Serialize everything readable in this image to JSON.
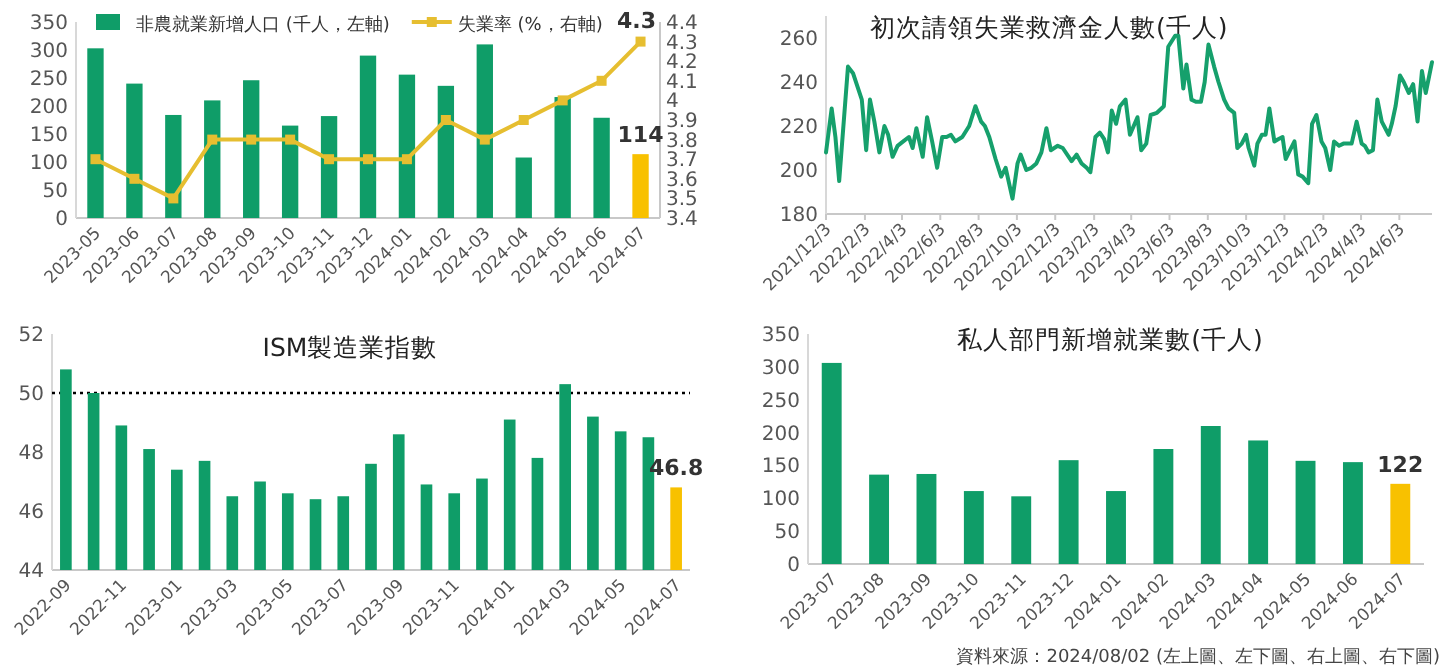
{
  "chart_data": [
    {
      "type": "bar",
      "categories": [
        "2023-05",
        "2023-06",
        "2023-07",
        "2023-08",
        "2023-09",
        "2023-10",
        "2023-11",
        "2023-12",
        "2024-01",
        "2024-02",
        "2024-03",
        "2024-04",
        "2024-05",
        "2024-06",
        "2024-07"
      ],
      "series": [
        {
          "name": "非農就業新增人口 (千人，左軸)",
          "color": "#0f9d68",
          "colors": [
            "#0f9d68",
            "#0f9d68",
            "#0f9d68",
            "#0f9d68",
            "#0f9d68",
            "#0f9d68",
            "#0f9d68",
            "#0f9d68",
            "#0f9d68",
            "#0f9d68",
            "#0f9d68",
            "#0f9d68",
            "#0f9d68",
            "#0f9d68",
            "#f8c100"
          ],
          "values": [
            303,
            240,
            184,
            210,
            246,
            165,
            182,
            290,
            256,
            236,
            310,
            108,
            216,
            179,
            114
          ],
          "value_labels": [
            null,
            null,
            null,
            null,
            null,
            null,
            null,
            null,
            null,
            null,
            null,
            null,
            null,
            null,
            "114"
          ]
        },
        {
          "name": "失業率 (%，右軸)",
          "type": "line",
          "axis": "y2",
          "color": "#e6be30",
          "marker": "square",
          "values": [
            3.7,
            3.6,
            3.5,
            3.8,
            3.8,
            3.8,
            3.7,
            3.7,
            3.7,
            3.9,
            3.8,
            3.9,
            4.0,
            4.1,
            4.3
          ],
          "value_labels": [
            null,
            null,
            null,
            null,
            null,
            null,
            null,
            null,
            null,
            null,
            null,
            null,
            null,
            null,
            "4.3"
          ]
        }
      ],
      "ylim": [
        0,
        350
      ],
      "yticks": [
        0,
        50,
        100,
        150,
        200,
        250,
        300,
        350
      ],
      "y2lim": [
        3.4,
        4.4
      ],
      "y2ticks": [
        3.4,
        3.5,
        3.6,
        3.7,
        3.8,
        3.9,
        4,
        4.1,
        4.2,
        4.3,
        4.4
      ],
      "legend": "top"
    },
    {
      "type": "line",
      "title": "初次請領失業救濟金人數(千人)",
      "color": "#16a06c",
      "x": [
        "2021-12-03",
        "2021-12-12",
        "2021-12-18",
        "2021-12-24",
        "2022-01-07",
        "2022-01-15",
        "2022-01-29",
        "2022-02-05",
        "2022-02-11",
        "2022-02-18",
        "2022-02-26",
        "2022-03-06",
        "2022-03-12",
        "2022-03-19",
        "2022-03-27",
        "2022-04-05",
        "2022-04-14",
        "2022-04-20",
        "2022-04-26",
        "2022-05-06",
        "2022-05-13",
        "2022-05-21",
        "2022-05-29",
        "2022-06-06",
        "2022-06-13",
        "2022-06-20",
        "2022-06-27",
        "2022-07-08",
        "2022-07-19",
        "2022-07-29",
        "2022-08-07",
        "2022-08-13",
        "2022-08-20",
        "2022-08-30",
        "2022-09-08",
        "2022-09-15",
        "2022-09-26",
        "2022-10-04",
        "2022-10-09",
        "2022-10-18",
        "2022-10-26",
        "2022-11-03",
        "2022-11-11",
        "2022-11-19",
        "2022-11-26",
        "2022-12-07",
        "2022-12-15",
        "2022-12-29",
        "2023-01-06",
        "2023-01-14",
        "2023-01-22",
        "2023-01-28",
        "2023-02-05",
        "2023-02-12",
        "2023-02-19",
        "2023-02-25",
        "2023-03-03",
        "2023-03-10",
        "2023-03-16",
        "2023-03-25",
        "2023-04-01",
        "2023-04-07",
        "2023-04-13",
        "2023-04-19",
        "2023-04-27",
        "2023-05-04",
        "2023-05-14",
        "2023-05-25",
        "2023-06-01",
        "2023-06-12",
        "2023-06-17",
        "2023-06-25",
        "2023-06-30",
        "2023-07-08",
        "2023-07-15",
        "2023-07-23",
        "2023-07-29",
        "2023-08-04",
        "2023-08-13",
        "2023-08-20",
        "2023-08-29",
        "2023-09-05",
        "2023-09-14",
        "2023-09-19",
        "2023-09-26",
        "2023-10-03",
        "2023-10-07",
        "2023-10-16",
        "2023-10-21",
        "2023-10-28",
        "2023-11-03",
        "2023-11-09",
        "2023-11-17",
        "2023-11-23",
        "2023-11-30",
        "2023-12-05",
        "2023-12-12",
        "2023-12-19",
        "2023-12-25",
        "2024-01-01",
        "2024-01-10",
        "2024-01-16",
        "2024-01-23",
        "2024-01-31",
        "2024-02-06",
        "2024-02-14",
        "2024-02-20",
        "2024-02-28",
        "2024-03-06",
        "2024-03-13",
        "2024-03-19",
        "2024-03-27",
        "2024-04-04",
        "2024-04-09",
        "2024-04-15",
        "2024-04-22",
        "2024-04-29",
        "2024-05-06",
        "2024-05-17",
        "2024-05-22",
        "2024-05-28",
        "2024-06-04",
        "2024-06-10",
        "2024-06-18",
        "2024-06-25",
        "2024-07-02",
        "2024-07-09",
        "2024-07-15",
        "2024-07-25"
      ],
      "values": [
        208,
        228,
        215,
        195,
        247,
        244,
        232,
        209,
        232,
        222,
        208,
        220,
        216,
        206,
        211,
        213,
        215,
        210,
        219,
        206,
        224,
        213,
        201,
        215,
        215,
        216,
        213,
        215,
        220,
        229,
        222,
        220,
        215,
        205,
        197,
        201,
        187,
        203,
        207,
        200,
        201,
        203,
        208,
        219,
        209,
        211,
        210,
        204,
        207,
        203,
        201,
        199,
        215,
        217,
        214,
        208,
        227,
        221,
        229,
        232,
        216,
        220,
        224,
        209,
        212,
        225,
        226,
        229,
        256,
        261,
        261,
        237,
        248,
        232,
        231,
        231,
        240,
        257,
        247,
        240,
        232,
        228,
        226,
        210,
        212,
        216,
        210,
        202,
        212,
        216,
        216,
        228,
        213,
        214,
        215,
        205,
        209,
        213,
        198,
        197,
        194,
        221,
        225,
        213,
        210,
        200,
        213,
        211,
        212,
        212,
        212,
        222,
        212,
        211,
        208,
        209,
        232,
        222,
        216,
        221,
        229,
        243,
        240,
        235,
        239,
        222,
        245,
        235,
        249
      ],
      "xlim": [
        "2021-12-03",
        "2024-07-25"
      ],
      "xticks": [
        {
          "value": "2021-12-03",
          "label": "2021/12/3"
        },
        {
          "value": "2022-02-03",
          "label": "2022/2/3"
        },
        {
          "value": "2022-04-03",
          "label": "2022/4/3"
        },
        {
          "value": "2022-06-03",
          "label": "2022/6/3"
        },
        {
          "value": "2022-08-03",
          "label": "2022/8/3"
        },
        {
          "value": "2022-10-03",
          "label": "2022/10/3"
        },
        {
          "value": "2022-12-03",
          "label": "2022/12/3"
        },
        {
          "value": "2023-02-03",
          "label": "2023/2/3"
        },
        {
          "value": "2023-04-03",
          "label": "2023/4/3"
        },
        {
          "value": "2023-06-03",
          "label": "2023/6/3"
        },
        {
          "value": "2023-08-03",
          "label": "2023/8/3"
        },
        {
          "value": "2023-10-03",
          "label": "2023/10/3"
        },
        {
          "value": "2023-12-03",
          "label": "2023/12/3"
        },
        {
          "value": "2024-02-03",
          "label": "2024/2/3"
        },
        {
          "value": "2024-04-03",
          "label": "2024/4/3"
        },
        {
          "value": "2024-06-03",
          "label": "2024/6/3"
        }
      ],
      "ylim": [
        180,
        270
      ],
      "yticks": [
        180,
        200,
        220,
        240,
        260
      ]
    },
    {
      "type": "bar",
      "title": "ISM製造業指數",
      "categories": [
        "2022-09",
        null,
        "2022-11",
        null,
        "2023-01",
        null,
        "2023-03",
        null,
        "2023-05",
        null,
        "2023-07",
        null,
        "2023-09",
        null,
        "2023-11",
        null,
        "2024-01",
        null,
        "2024-03",
        null,
        "2024-05",
        null,
        "2024-07"
      ],
      "values": [
        50.8,
        50.0,
        48.9,
        48.1,
        47.4,
        47.7,
        46.5,
        47.0,
        46.6,
        46.4,
        46.5,
        47.6,
        48.6,
        46.9,
        46.6,
        47.1,
        49.1,
        47.8,
        50.3,
        49.2,
        48.7,
        48.5,
        46.8
      ],
      "colors": [
        "#0f9d68",
        "#0f9d68",
        "#0f9d68",
        "#0f9d68",
        "#0f9d68",
        "#0f9d68",
        "#0f9d68",
        "#0f9d68",
        "#0f9d68",
        "#0f9d68",
        "#0f9d68",
        "#0f9d68",
        "#0f9d68",
        "#0f9d68",
        "#0f9d68",
        "#0f9d68",
        "#0f9d68",
        "#0f9d68",
        "#0f9d68",
        "#0f9d68",
        "#0f9d68",
        "#0f9d68",
        "#f8c100"
      ],
      "value_labels": [
        null,
        null,
        null,
        null,
        null,
        null,
        null,
        null,
        null,
        null,
        null,
        null,
        null,
        null,
        null,
        null,
        null,
        null,
        null,
        null,
        null,
        null,
        "46.8"
      ],
      "ylim": [
        44,
        52
      ],
      "yticks": [
        44,
        46,
        48,
        50,
        52
      ],
      "ref_lines": [
        {
          "axis": "y",
          "value": 50,
          "color": "#000000",
          "line_style": "dotted"
        }
      ]
    },
    {
      "type": "bar",
      "title": "私人部門新增就業數(千人)",
      "categories": [
        "2023-07",
        "2023-08",
        "2023-09",
        "2023-10",
        "2023-11",
        "2023-12",
        "2024-01",
        "2024-02",
        "2024-03",
        "2024-04",
        "2024-05",
        "2024-06",
        "2024-07"
      ],
      "values": [
        306,
        136,
        137,
        111,
        103,
        158,
        111,
        175,
        210,
        188,
        157,
        155,
        122
      ],
      "colors": [
        "#0f9d68",
        "#0f9d68",
        "#0f9d68",
        "#0f9d68",
        "#0f9d68",
        "#0f9d68",
        "#0f9d68",
        "#0f9d68",
        "#0f9d68",
        "#0f9d68",
        "#0f9d68",
        "#0f9d68",
        "#f8c100"
      ],
      "value_labels": [
        null,
        null,
        null,
        null,
        null,
        null,
        null,
        null,
        null,
        null,
        null,
        null,
        "122"
      ],
      "ylim": [
        0,
        350
      ],
      "yticks": [
        0,
        50,
        100,
        150,
        200,
        250,
        300,
        350
      ],
      "annotations": [
        "資料來源：2024/08/02 (左上圖、左下圖、右上圖、右下圖)"
      ]
    }
  ]
}
